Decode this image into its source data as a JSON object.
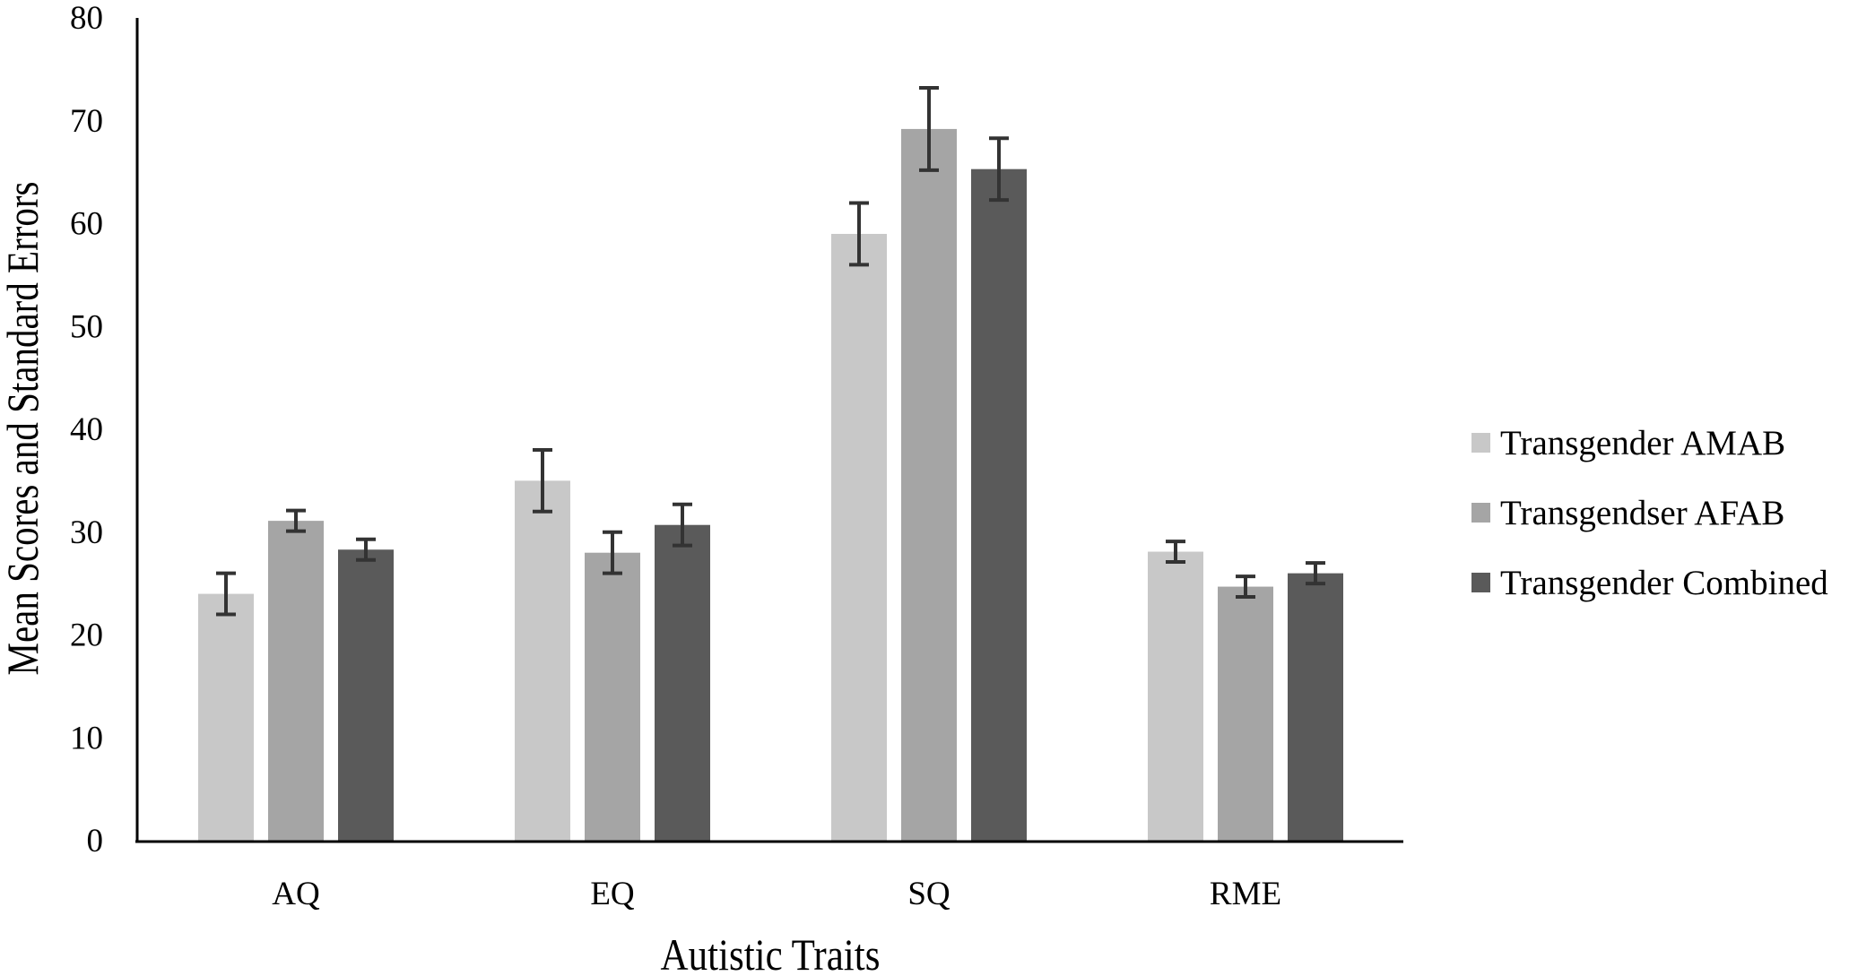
{
  "chart_data": {
    "type": "bar",
    "title": "",
    "xlabel": "Autistic Traits",
    "ylabel": "Mean Scores and Standard Errors",
    "ylim": [
      0,
      80
    ],
    "yticks": [
      0,
      10,
      20,
      30,
      40,
      50,
      60,
      70,
      80
    ],
    "grid": false,
    "legend_position": "right",
    "categories": [
      "AQ",
      "EQ",
      "SQ",
      "RME"
    ],
    "series": [
      {
        "name": "Transgender AMAB",
        "color": "#c8c8c8",
        "values": [
          24.0,
          35.0,
          59.0,
          28.1
        ],
        "errors": [
          2.0,
          3.0,
          3.0,
          1.0
        ]
      },
      {
        "name": "Transgendser AFAB",
        "color": "#a5a5a5",
        "values": [
          31.1,
          28.0,
          69.2,
          24.7
        ],
        "errors": [
          1.0,
          2.0,
          4.0,
          1.0
        ]
      },
      {
        "name": "Transgender Combined",
        "color": "#5a5a5a",
        "values": [
          28.3,
          30.7,
          65.3,
          26.0
        ],
        "errors": [
          1.0,
          2.0,
          3.0,
          1.0
        ]
      }
    ],
    "error_bar_color": "#333333"
  }
}
